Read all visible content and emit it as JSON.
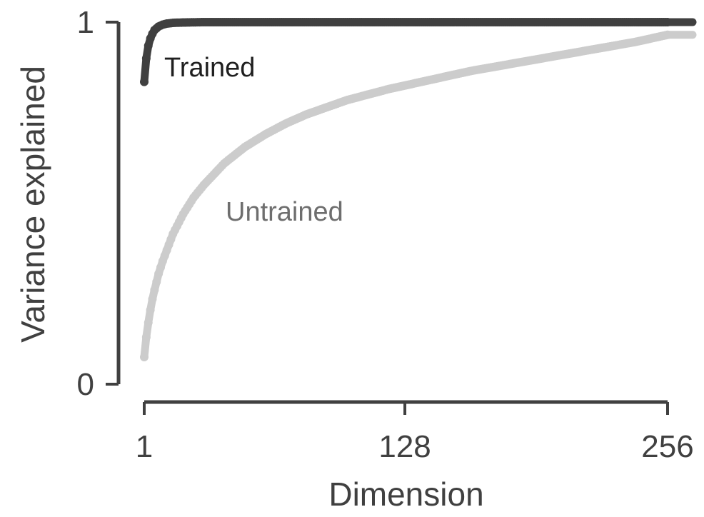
{
  "chart_data": {
    "type": "line",
    "xlabel": "Dimension",
    "ylabel": "Variance explained",
    "xlim": [
      1,
      256
    ],
    "ylim": [
      0,
      1
    ],
    "x_ticks": [
      1,
      128,
      256
    ],
    "x_tick_labels": [
      "1",
      "128",
      "256"
    ],
    "y_ticks": [
      0,
      1
    ],
    "y_tick_labels": [
      "0",
      "1"
    ],
    "grid": false,
    "legend": "none",
    "series": [
      {
        "name": "Trained",
        "color": "#404040",
        "x": [
          1,
          2,
          3,
          4,
          5,
          6,
          8,
          10,
          12,
          15,
          20,
          30,
          50,
          100,
          150,
          200,
          256
        ],
        "values": [
          0.835,
          0.9,
          0.935,
          0.955,
          0.968,
          0.978,
          0.988,
          0.993,
          0.996,
          0.998,
          0.999,
          1.0,
          1.0,
          1.0,
          1.0,
          1.0,
          1.0
        ]
      },
      {
        "name": "Untrained",
        "color": "#cccccc",
        "x": [
          1,
          2,
          3,
          4,
          5,
          6,
          8,
          10,
          15,
          20,
          25,
          30,
          40,
          50,
          60,
          70,
          80,
          90,
          100,
          110,
          120,
          128,
          140,
          160,
          180,
          200,
          220,
          240,
          256
        ],
        "values": [
          0.075,
          0.13,
          0.17,
          0.205,
          0.235,
          0.26,
          0.305,
          0.34,
          0.415,
          0.47,
          0.515,
          0.55,
          0.61,
          0.655,
          0.69,
          0.72,
          0.745,
          0.765,
          0.785,
          0.8,
          0.815,
          0.825,
          0.84,
          0.865,
          0.885,
          0.905,
          0.925,
          0.945,
          0.965
        ]
      }
    ]
  }
}
